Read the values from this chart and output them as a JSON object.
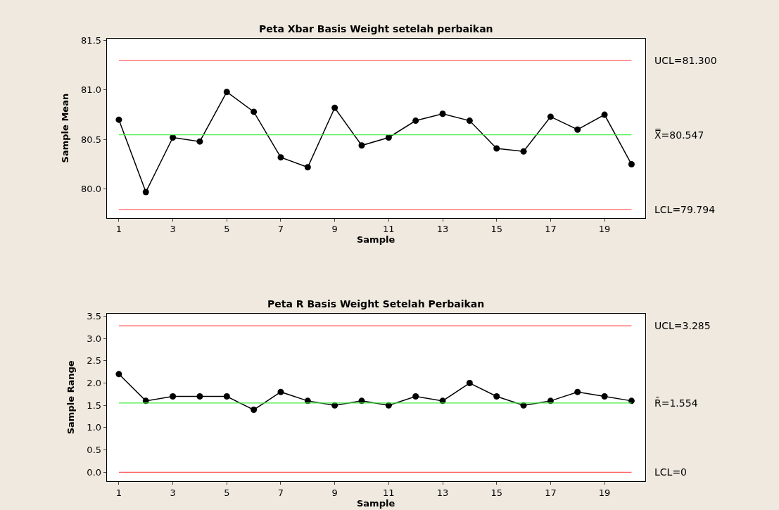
{
  "chart_data": [
    {
      "type": "line",
      "title": "Peta Xbar Basis Weight setelah perbaikan",
      "xlabel": "Sample",
      "ylabel": "Sample Mean",
      "x": [
        1,
        2,
        3,
        4,
        5,
        6,
        7,
        8,
        9,
        10,
        11,
        12,
        13,
        14,
        15,
        16,
        17,
        18,
        19,
        20
      ],
      "series": [
        {
          "color": "#000000",
          "values": [
            80.7,
            79.97,
            80.52,
            80.48,
            80.98,
            80.78,
            80.32,
            80.22,
            80.82,
            80.44,
            80.52,
            80.69,
            80.76,
            80.69,
            80.41,
            80.38,
            80.73,
            80.6,
            80.75,
            80.25
          ]
        }
      ],
      "xlim": [
        0.55,
        20.5
      ],
      "xticks": [
        1,
        3,
        5,
        7,
        9,
        11,
        13,
        15,
        17,
        19
      ],
      "ylim": [
        79.71,
        81.52
      ],
      "yticks": [
        {
          "value": 80.0,
          "label": "80.0"
        },
        {
          "value": 80.5,
          "label": "80.5"
        },
        {
          "value": 81.0,
          "label": "81.0"
        },
        {
          "value": 81.5,
          "label": "81.5"
        }
      ],
      "ref_lines": [
        {
          "axis": "y",
          "value": 81.3,
          "label": "UCL=81.300",
          "color": "#ff5a5a"
        },
        {
          "axis": "y",
          "value": 80.547,
          "label": "X̿=80.547",
          "color": "#44ee44"
        },
        {
          "axis": "y",
          "value": 79.794,
          "label": "LCL=79.794",
          "color": "#ff5a5a"
        }
      ],
      "marker": "circle",
      "line_style": "solid",
      "grid": false
    },
    {
      "type": "line",
      "title": "Peta R Basis Weight Setelah Perbaikan",
      "xlabel": "Sample",
      "ylabel": "Sample Range",
      "x": [
        1,
        2,
        3,
        4,
        5,
        6,
        7,
        8,
        9,
        10,
        11,
        12,
        13,
        14,
        15,
        16,
        17,
        18,
        19,
        20
      ],
      "series": [
        {
          "color": "#000000",
          "values": [
            2.2,
            1.6,
            1.7,
            1.7,
            1.7,
            1.4,
            1.8,
            1.6,
            1.5,
            1.6,
            1.5,
            1.7,
            1.6,
            2.0,
            1.7,
            1.5,
            1.6,
            1.8,
            1.7,
            1.6
          ]
        }
      ],
      "xlim": [
        0.55,
        20.5
      ],
      "xticks": [
        1,
        3,
        5,
        7,
        9,
        11,
        13,
        15,
        17,
        19
      ],
      "ylim": [
        -0.2,
        3.56
      ],
      "yticks": [
        {
          "value": 0,
          "label": "0.0"
        },
        {
          "value": 0.5,
          "label": "0.5"
        },
        {
          "value": 1,
          "label": "1.0"
        },
        {
          "value": 1.5,
          "label": "1.5"
        },
        {
          "value": 2,
          "label": "2.0"
        },
        {
          "value": 2.5,
          "label": "2.5"
        },
        {
          "value": 3,
          "label": "3.0"
        },
        {
          "value": 3.5,
          "label": "3.5"
        }
      ],
      "ref_lines": [
        {
          "axis": "y",
          "value": 3.285,
          "label": "UCL=3.285",
          "color": "#ff5a5a"
        },
        {
          "axis": "y",
          "value": 1.554,
          "label": "R̄=1.554",
          "color": "#44ee44"
        },
        {
          "axis": "y",
          "value": 0,
          "label": "LCL=0",
          "color": "#ff5a5a"
        }
      ],
      "marker": "circle",
      "line_style": "solid",
      "grid": false
    }
  ]
}
